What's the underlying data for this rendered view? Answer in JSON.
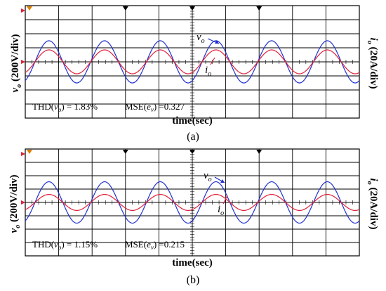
{
  "chart_data": [
    {
      "type": "line",
      "caption": "(a)",
      "xlabel": "time(sec)",
      "ylabel_left": {
        "sym": "v",
        "sub": "o",
        "rest": " (200V/div)"
      },
      "ylabel_right": {
        "sym": "i",
        "sub": "o",
        "rest": " (20A/div)"
      },
      "divisions": {
        "x": 10,
        "y": 8
      },
      "grid": true,
      "cycles": 6,
      "series": [
        {
          "name": "vo",
          "color": "#2030d0",
          "amplitude_div": 1.5
        },
        {
          "name": "io",
          "color": "#e0203a",
          "amplitude_div": 0.85
        }
      ],
      "annotations": {
        "thd_label": "THD(",
        "thd_var": "v",
        "thd_sub": "o",
        "thd_value": ") = 1.83%",
        "mse_label": "MSE(",
        "mse_var": "e",
        "mse_sub": "v",
        "mse_value": ") =0.327",
        "vo_tag": {
          "sym": "v",
          "sub": "o"
        },
        "io_tag": {
          "sym": "i",
          "sub": "o"
        }
      }
    },
    {
      "type": "line",
      "caption": "(b)",
      "xlabel": "time(sec)",
      "ylabel_left": {
        "sym": "v",
        "sub": "o",
        "rest": " (200V/div)"
      },
      "ylabel_right": {
        "sym": "i",
        "sub": "o",
        "rest": " (20A/div)"
      },
      "divisions": {
        "x": 10,
        "y": 8
      },
      "grid": true,
      "cycles": 6,
      "series": [
        {
          "name": "vo",
          "color": "#2030d0",
          "amplitude_div": 1.55
        },
        {
          "name": "io",
          "color": "#e0203a",
          "amplitude_div": 0.6
        }
      ],
      "annotations": {
        "thd_label": "THD(",
        "thd_var": "v",
        "thd_sub": "o",
        "thd_value": ") = 1.15%",
        "mse_label": "MSE(",
        "mse_var": "e",
        "mse_sub": "v",
        "mse_value": ") =0.215",
        "vo_tag": {
          "sym": "v",
          "sub": "o"
        },
        "io_tag": {
          "sym": "i",
          "sub": "o"
        }
      }
    }
  ]
}
